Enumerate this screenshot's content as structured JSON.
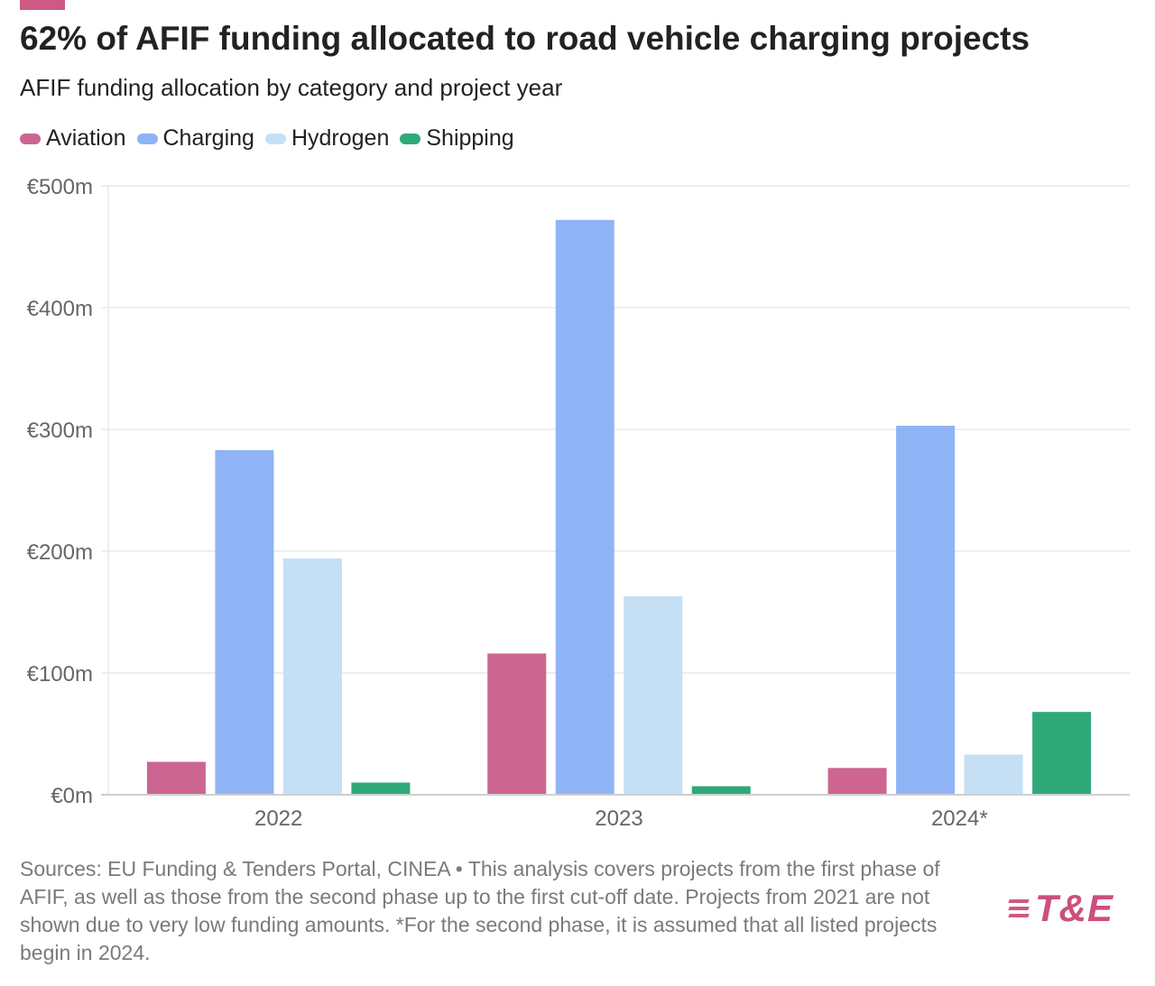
{
  "title": "62% of AFIF funding allocated to road vehicle charging projects",
  "subtitle": "AFIF funding allocation by category and project year",
  "legend": [
    {
      "label": "Aviation",
      "color": "#cc6690"
    },
    {
      "label": "Charging",
      "color": "#8fb4f5"
    },
    {
      "label": "Hydrogen",
      "color": "#c5e0f5"
    },
    {
      "label": "Shipping",
      "color": "#2fa97a"
    }
  ],
  "footer": "Sources: EU Funding & Tenders Portal, CINEA • This analysis covers projects from the first phase of AFIF, as well as those from the second phase up to the first cut-off date. Projects from 2021 are not shown due to very low funding amounts. *For the second phase, it is assumed that all listed projects begin in 2024.",
  "logo": {
    "text": "T&E"
  },
  "chart_data": {
    "type": "bar",
    "title": "62% of AFIF funding allocated to road vehicle charging projects",
    "subtitle": "AFIF funding allocation by category and project year",
    "categories": [
      "2022",
      "2023",
      "2024*"
    ],
    "series": [
      {
        "name": "Aviation",
        "color": "#cc6690",
        "values": [
          27,
          116,
          22
        ]
      },
      {
        "name": "Charging",
        "color": "#8fb4f5",
        "values": [
          283,
          472,
          303
        ]
      },
      {
        "name": "Hydrogen",
        "color": "#c5e0f5",
        "values": [
          194,
          163,
          33
        ]
      },
      {
        "name": "Shipping",
        "color": "#2fa97a",
        "values": [
          10,
          7,
          68
        ]
      }
    ],
    "ylim": [
      0,
      500
    ],
    "yticks": [
      0,
      100,
      200,
      300,
      400,
      500
    ],
    "ytick_labels": [
      "€0m",
      "€100m",
      "€200m",
      "€300m",
      "€400m",
      "€500m"
    ],
    "xlabel": "",
    "ylabel": "",
    "grid": true,
    "legend_position": "top-left"
  }
}
